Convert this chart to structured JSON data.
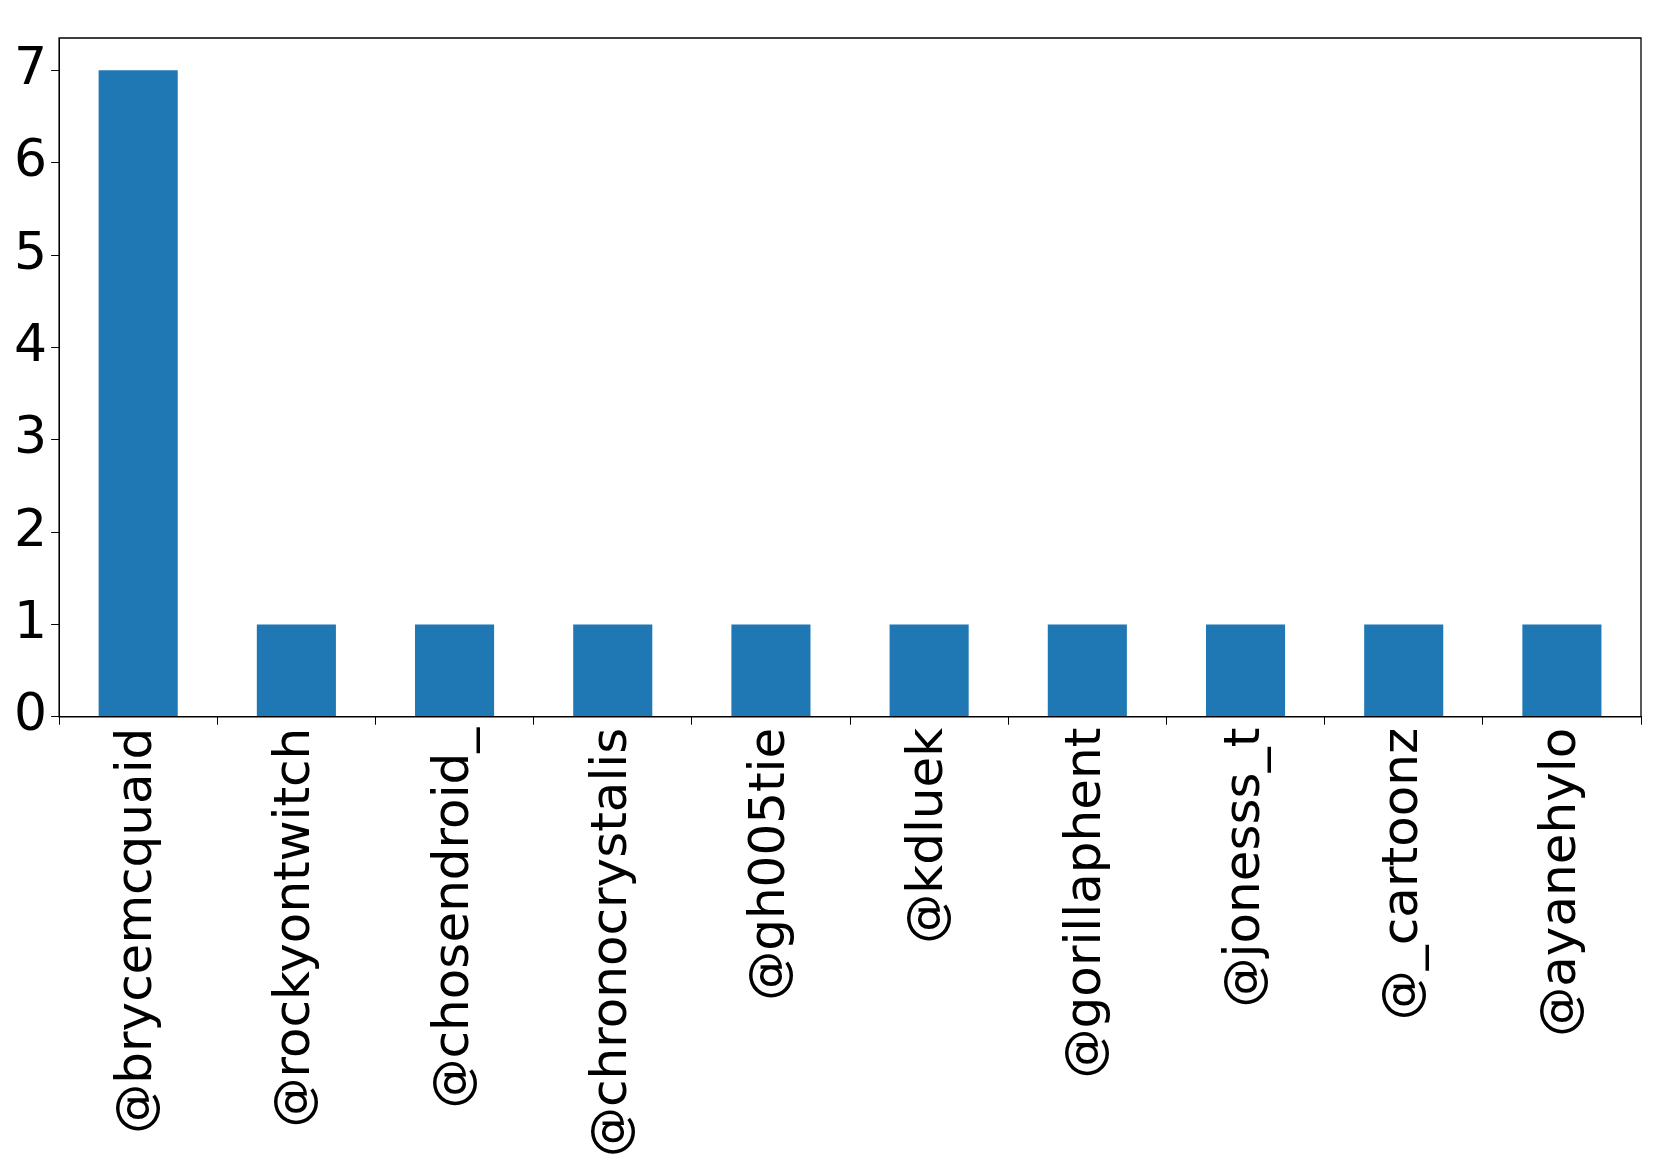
{
  "chart_data": {
    "type": "bar",
    "categories": [
      "@brycemcquaid",
      "@rockyontwitch",
      "@chosendroid_",
      "@chronocrystalis",
      "@gh005tie",
      "@kdluek",
      "@gorillaphent",
      "@jonesss_t",
      "@_cartoonz",
      "@ayanehylo"
    ],
    "values": [
      7,
      1,
      1,
      1,
      1,
      1,
      1,
      1,
      1,
      1
    ],
    "color": "#1f77b4",
    "ylim": [
      0,
      7.35
    ],
    "yticks": [
      0,
      1,
      2,
      3,
      4,
      5,
      6,
      7
    ],
    "grid": false,
    "legend": false
  }
}
